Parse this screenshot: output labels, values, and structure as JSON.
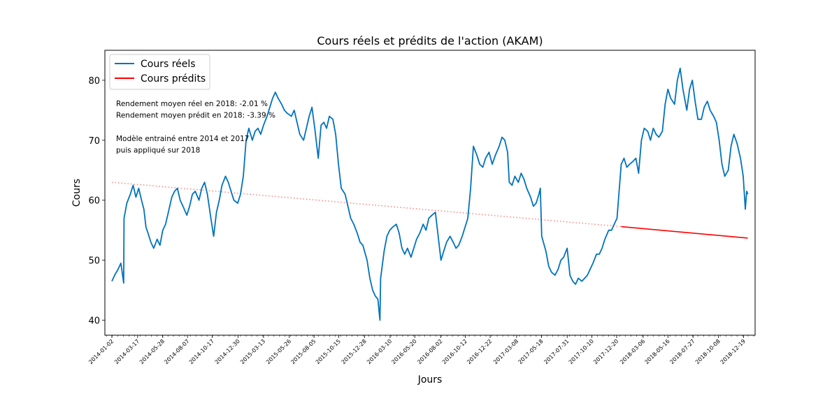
{
  "chart_data": {
    "type": "line",
    "title": "Cours réels et prédits de l'action (AKAM)",
    "xlabel": "Jours",
    "ylabel": "Cours",
    "ylim": [
      37.5,
      85.0
    ],
    "yticks": [
      40,
      50,
      60,
      70,
      80
    ],
    "x_tick_labels": [
      "2014-01-02",
      "2014-03-17",
      "2014-05-28",
      "2014-08-07",
      "2014-10-17",
      "2014-12-30",
      "2015-03-13",
      "2015-05-26",
      "2015-08-05",
      "2015-10-15",
      "2015-12-28",
      "2016-03-10",
      "2016-05-20",
      "2016-08-02",
      "2016-10-12",
      "2016-12-22",
      "2017-03-08",
      "2017-05-18",
      "2017-07-31",
      "2017-10-10",
      "2017-12-20",
      "2018-03-06",
      "2018-05-16",
      "2018-07-27",
      "2018-10-08",
      "2018-12-19"
    ],
    "legend_position": "upper-left",
    "grid": false,
    "series": [
      {
        "name": "Cours réels",
        "color": "#0072bd",
        "points": [
          [
            "2014-01-02",
            46.5
          ],
          [
            "2014-01-10",
            47.5
          ],
          [
            "2014-01-20",
            48.5
          ],
          [
            "2014-01-28",
            49.5
          ],
          [
            "2014-02-05",
            46.2
          ],
          [
            "2014-02-06",
            57.0
          ],
          [
            "2014-02-14",
            59.5
          ],
          [
            "2014-02-24",
            61.0
          ],
          [
            "2014-03-04",
            62.5
          ],
          [
            "2014-03-12",
            60.5
          ],
          [
            "2014-03-20",
            62.0
          ],
          [
            "2014-03-28",
            60.0
          ],
          [
            "2014-04-04",
            58.5
          ],
          [
            "2014-04-10",
            55.5
          ],
          [
            "2014-04-16",
            54.5
          ],
          [
            "2014-04-24",
            53.0
          ],
          [
            "2014-05-02",
            52.0
          ],
          [
            "2014-05-12",
            53.5
          ],
          [
            "2014-05-20",
            52.5
          ],
          [
            "2014-05-28",
            55.0
          ],
          [
            "2014-06-05",
            56.0
          ],
          [
            "2014-06-13",
            58.0
          ],
          [
            "2014-06-23",
            60.5
          ],
          [
            "2014-07-01",
            61.5
          ],
          [
            "2014-07-09",
            62.0
          ],
          [
            "2014-07-17",
            60.0
          ],
          [
            "2014-07-25",
            59.0
          ],
          [
            "2014-08-05",
            57.5
          ],
          [
            "2014-08-13",
            59.0
          ],
          [
            "2014-08-21",
            61.0
          ],
          [
            "2014-08-29",
            61.5
          ],
          [
            "2014-09-09",
            60.0
          ],
          [
            "2014-09-17",
            62.0
          ],
          [
            "2014-09-25",
            63.0
          ],
          [
            "2014-10-03",
            61.0
          ],
          [
            "2014-10-13",
            57.0
          ],
          [
            "2014-10-21",
            54.0
          ],
          [
            "2014-10-29",
            58.0
          ],
          [
            "2014-11-06",
            60.0
          ],
          [
            "2014-11-14",
            62.5
          ],
          [
            "2014-11-24",
            64.0
          ],
          [
            "2014-12-02",
            63.0
          ],
          [
            "2014-12-10",
            61.5
          ],
          [
            "2014-12-18",
            60.0
          ],
          [
            "2014-12-29",
            59.5
          ],
          [
            "2015-01-06",
            61.0
          ],
          [
            "2015-01-14",
            64.0
          ],
          [
            "2015-01-22",
            70.0
          ],
          [
            "2015-01-30",
            72.0
          ],
          [
            "2015-02-09",
            70.0
          ],
          [
            "2015-02-17",
            71.5
          ],
          [
            "2015-02-25",
            72.0
          ],
          [
            "2015-03-05",
            71.0
          ],
          [
            "2015-03-13",
            72.5
          ],
          [
            "2015-03-23",
            74.0
          ],
          [
            "2015-03-31",
            75.5
          ],
          [
            "2015-04-08",
            77.0
          ],
          [
            "2015-04-16",
            78.0
          ],
          [
            "2015-04-24",
            77.0
          ],
          [
            "2015-05-04",
            76.0
          ],
          [
            "2015-05-12",
            75.0
          ],
          [
            "2015-05-20",
            74.5
          ],
          [
            "2015-06-01",
            74.0
          ],
          [
            "2015-06-09",
            75.0
          ],
          [
            "2015-06-17",
            73.0
          ],
          [
            "2015-06-25",
            71.0
          ],
          [
            "2015-07-06",
            70.0
          ],
          [
            "2015-07-14",
            72.0
          ],
          [
            "2015-07-22",
            74.0
          ],
          [
            "2015-07-30",
            75.5
          ],
          [
            "2015-08-07",
            72.0
          ],
          [
            "2015-08-17",
            67.0
          ],
          [
            "2015-08-25",
            72.5
          ],
          [
            "2015-09-02",
            73.0
          ],
          [
            "2015-09-10",
            72.0
          ],
          [
            "2015-09-18",
            74.0
          ],
          [
            "2015-09-28",
            73.5
          ],
          [
            "2015-10-06",
            71.0
          ],
          [
            "2015-10-14",
            66.0
          ],
          [
            "2015-10-22",
            62.0
          ],
          [
            "2015-11-02",
            61.0
          ],
          [
            "2015-11-10",
            59.0
          ],
          [
            "2015-11-18",
            57.0
          ],
          [
            "2015-11-27",
            56.0
          ],
          [
            "2015-12-07",
            54.5
          ],
          [
            "2015-12-15",
            53.0
          ],
          [
            "2015-12-23",
            52.5
          ],
          [
            "2016-01-04",
            50.0
          ],
          [
            "2016-01-12",
            47.0
          ],
          [
            "2016-01-20",
            45.0
          ],
          [
            "2016-01-28",
            44.0
          ],
          [
            "2016-02-04",
            43.5
          ],
          [
            "2016-02-10",
            40.0
          ],
          [
            "2016-02-12",
            47.0
          ],
          [
            "2016-02-22",
            51.5
          ],
          [
            "2016-03-01",
            54.0
          ],
          [
            "2016-03-09",
            55.0
          ],
          [
            "2016-03-17",
            55.5
          ],
          [
            "2016-03-28",
            56.0
          ],
          [
            "2016-04-05",
            54.5
          ],
          [
            "2016-04-13",
            52.0
          ],
          [
            "2016-04-21",
            51.0
          ],
          [
            "2016-04-29",
            52.0
          ],
          [
            "2016-05-09",
            50.5
          ],
          [
            "2016-05-17",
            52.0
          ],
          [
            "2016-05-25",
            53.5
          ],
          [
            "2016-06-03",
            54.5
          ],
          [
            "2016-06-13",
            56.0
          ],
          [
            "2016-06-21",
            55.0
          ],
          [
            "2016-06-29",
            57.0
          ],
          [
            "2016-07-08",
            57.5
          ],
          [
            "2016-07-18",
            58.0
          ],
          [
            "2016-07-26",
            54.0
          ],
          [
            "2016-08-03",
            50.0
          ],
          [
            "2016-08-11",
            51.5
          ],
          [
            "2016-08-19",
            53.0
          ],
          [
            "2016-08-29",
            54.0
          ],
          [
            "2016-09-07",
            53.0
          ],
          [
            "2016-09-15",
            52.0
          ],
          [
            "2016-09-23",
            52.5
          ],
          [
            "2016-10-03",
            54.0
          ],
          [
            "2016-10-11",
            55.5
          ],
          [
            "2016-10-19",
            57.0
          ],
          [
            "2016-10-27",
            62.0
          ],
          [
            "2016-11-04",
            69.0
          ],
          [
            "2016-11-14",
            67.5
          ],
          [
            "2016-11-22",
            66.0
          ],
          [
            "2016-12-01",
            65.5
          ],
          [
            "2016-12-09",
            67.0
          ],
          [
            "2016-12-19",
            68.0
          ],
          [
            "2016-12-28",
            66.0
          ],
          [
            "2017-01-06",
            67.5
          ],
          [
            "2017-01-17",
            69.0
          ],
          [
            "2017-01-25",
            70.5
          ],
          [
            "2017-02-02",
            70.0
          ],
          [
            "2017-02-10",
            68.0
          ],
          [
            "2017-02-15",
            63.0
          ],
          [
            "2017-02-23",
            62.5
          ],
          [
            "2017-03-03",
            64.0
          ],
          [
            "2017-03-13",
            63.0
          ],
          [
            "2017-03-21",
            64.5
          ],
          [
            "2017-03-29",
            63.5
          ],
          [
            "2017-04-06",
            62.0
          ],
          [
            "2017-04-17",
            60.5
          ],
          [
            "2017-04-25",
            59.0
          ],
          [
            "2017-05-03",
            59.5
          ],
          [
            "2017-05-11",
            61.0
          ],
          [
            "2017-05-15",
            62.0
          ],
          [
            "2017-05-19",
            54.0
          ],
          [
            "2017-05-31",
            51.5
          ],
          [
            "2017-06-08",
            49.0
          ],
          [
            "2017-06-16",
            48.0
          ],
          [
            "2017-06-26",
            47.5
          ],
          [
            "2017-07-05",
            48.5
          ],
          [
            "2017-07-13",
            50.0
          ],
          [
            "2017-07-21",
            50.5
          ],
          [
            "2017-07-31",
            52.0
          ],
          [
            "2017-08-08",
            47.5
          ],
          [
            "2017-08-16",
            46.5
          ],
          [
            "2017-08-24",
            46.0
          ],
          [
            "2017-09-01",
            47.0
          ],
          [
            "2017-09-11",
            46.5
          ],
          [
            "2017-09-19",
            47.0
          ],
          [
            "2017-09-27",
            47.5
          ],
          [
            "2017-10-05",
            48.5
          ],
          [
            "2017-10-13",
            49.5
          ],
          [
            "2017-10-23",
            51.0
          ],
          [
            "2017-10-31",
            51.0
          ],
          [
            "2017-11-08",
            52.0
          ],
          [
            "2017-11-16",
            53.5
          ],
          [
            "2017-11-27",
            55.0
          ],
          [
            "2017-12-05",
            55.0
          ],
          [
            "2017-12-13",
            56.0
          ],
          [
            "2017-12-21",
            57.0
          ],
          [
            "2018-01-02",
            66.0
          ],
          [
            "2018-01-10",
            67.0
          ],
          [
            "2018-01-18",
            65.5
          ],
          [
            "2018-01-26",
            66.0
          ],
          [
            "2018-02-05",
            66.5
          ],
          [
            "2018-02-13",
            67.0
          ],
          [
            "2018-02-21",
            64.5
          ],
          [
            "2018-03-01",
            70.0
          ],
          [
            "2018-03-09",
            72.0
          ],
          [
            "2018-03-19",
            71.5
          ],
          [
            "2018-03-27",
            70.0
          ],
          [
            "2018-04-04",
            72.0
          ],
          [
            "2018-04-12",
            71.0
          ],
          [
            "2018-04-20",
            70.5
          ],
          [
            "2018-04-30",
            71.5
          ],
          [
            "2018-05-08",
            76.0
          ],
          [
            "2018-05-16",
            78.5
          ],
          [
            "2018-05-24",
            77.0
          ],
          [
            "2018-06-04",
            76.0
          ],
          [
            "2018-06-12",
            80.0
          ],
          [
            "2018-06-20",
            82.0
          ],
          [
            "2018-06-28",
            78.5
          ],
          [
            "2018-07-09",
            75.0
          ],
          [
            "2018-07-17",
            78.5
          ],
          [
            "2018-07-25",
            80.0
          ],
          [
            "2018-08-02",
            76.5
          ],
          [
            "2018-08-10",
            73.5
          ],
          [
            "2018-08-20",
            73.5
          ],
          [
            "2018-08-28",
            75.5
          ],
          [
            "2018-09-06",
            76.5
          ],
          [
            "2018-09-14",
            75.0
          ],
          [
            "2018-09-24",
            74.0
          ],
          [
            "2018-10-02",
            73.0
          ],
          [
            "2018-10-10",
            70.0
          ],
          [
            "2018-10-18",
            66.0
          ],
          [
            "2018-10-26",
            64.0
          ],
          [
            "2018-11-05",
            65.0
          ],
          [
            "2018-11-13",
            69.0
          ],
          [
            "2018-11-21",
            71.0
          ],
          [
            "2018-11-30",
            69.5
          ],
          [
            "2018-12-10",
            67.0
          ],
          [
            "2018-12-18",
            64.0
          ],
          [
            "2018-12-24",
            58.5
          ],
          [
            "2018-12-28",
            61.5
          ],
          [
            "2018-12-31",
            61.0
          ]
        ]
      },
      {
        "name": "Cours prédits",
        "color": "#ff0000",
        "points": [
          [
            "2018-01-02",
            55.6
          ],
          [
            "2018-12-31",
            53.7
          ]
        ]
      }
    ],
    "trend_line": {
      "color": "#ff8080",
      "style": "dotted",
      "points": [
        [
          "2014-01-02",
          63.0
        ],
        [
          "2018-01-02",
          55.6
        ]
      ]
    },
    "annotations": [
      "Rendement moyen réel en 2018: -2.01 %",
      "Rendement moyen prédit en 2018: -3.39 %",
      "",
      "Modèle entrainé entre 2014 et 2017",
      "puis appliqué sur 2018"
    ]
  }
}
